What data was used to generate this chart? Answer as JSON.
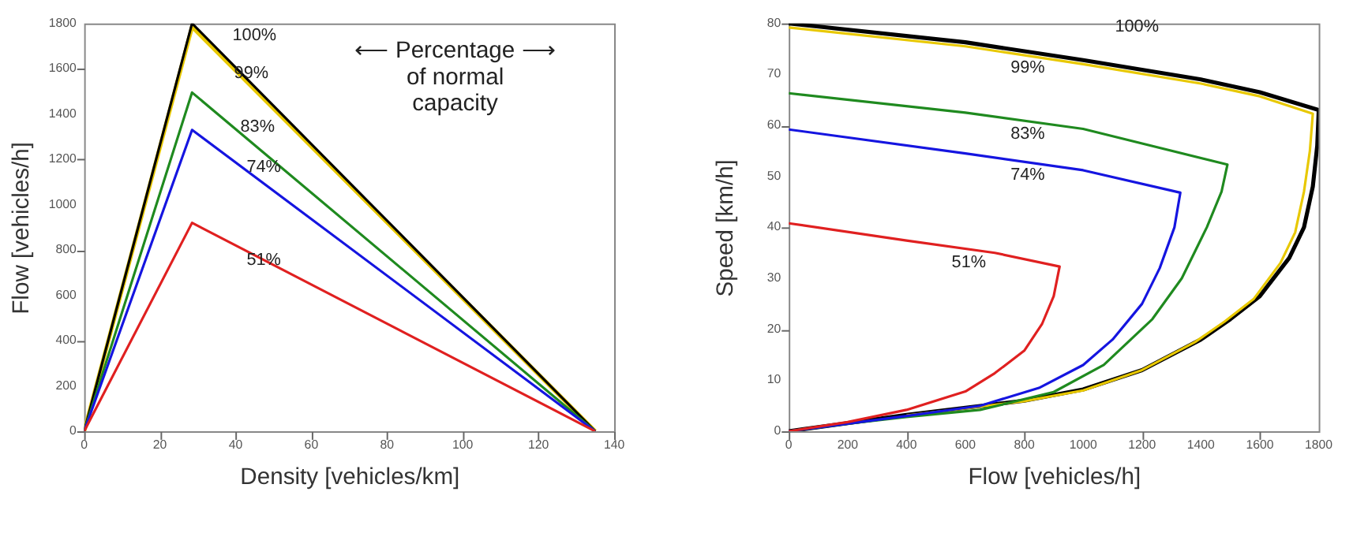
{
  "chart_data": [
    {
      "type": "line",
      "xlabel": "Density [vehicles/km]",
      "ylabel": "Flow [vehicles/h]",
      "xlim": [
        0,
        140
      ],
      "ylim": [
        0,
        1800
      ],
      "xticks": [
        0,
        20,
        40,
        60,
        80,
        100,
        120,
        140
      ],
      "yticks": [
        0,
        200,
        400,
        600,
        800,
        1000,
        1200,
        1400,
        1600,
        1800
      ],
      "grid": false,
      "series": [
        {
          "name": "99%",
          "color": "#e8c800",
          "x": [
            0,
            28.5,
            135
          ],
          "values": [
            0,
            1785,
            0
          ]
        },
        {
          "name": "100%",
          "color": "#000000",
          "x": [
            0,
            28.5,
            135
          ],
          "values": [
            0,
            1800,
            0
          ]
        },
        {
          "name": "83%",
          "color": "#1f8a1f",
          "x": [
            0,
            28.5,
            135
          ],
          "values": [
            0,
            1495,
            0
          ]
        },
        {
          "name": "74%",
          "color": "#1515e0",
          "x": [
            0,
            28.5,
            135
          ],
          "values": [
            0,
            1330,
            0
          ]
        },
        {
          "name": "51%",
          "color": "#e02020",
          "x": [
            0,
            28.5,
            135
          ],
          "values": [
            0,
            920,
            0
          ]
        }
      ],
      "annotations": [
        "⟵   Percentage   ⟶\nof normal\ncapacity"
      ]
    },
    {
      "type": "line",
      "xlabel": "Flow [vehicles/h]",
      "ylabel": "Speed [km/h]",
      "xlim": [
        0,
        1800
      ],
      "ylim": [
        0,
        80
      ],
      "xticks": [
        0,
        200,
        400,
        600,
        800,
        1000,
        1200,
        1400,
        1600,
        1800
      ],
      "yticks": [
        0,
        10,
        20,
        30,
        40,
        50,
        60,
        70,
        80
      ],
      "grid": false,
      "series": [
        {
          "name": "100%",
          "color": "#000000",
          "x": [
            0,
            600,
            1000,
            1400,
            1600,
            1800,
            1795,
            1780,
            1750,
            1700,
            1600,
            1500,
            1400,
            1200,
            1000,
            800,
            600,
            400,
            200,
            0
          ],
          "values": [
            80,
            76.3,
            72.8,
            69,
            66.5,
            63,
            56,
            48,
            40,
            34,
            26.5,
            22,
            18,
            12,
            8.2,
            6,
            4.6,
            3.2,
            1.6,
            0
          ]
        },
        {
          "name": "99%",
          "color": "#e8c800",
          "x": [
            0,
            600,
            1000,
            1400,
            1600,
            1780,
            1770,
            1750,
            1720,
            1670,
            1580,
            1480,
            1380,
            1200,
            1000,
            800,
            600,
            400
          ],
          "values": [
            79.2,
            75.5,
            72,
            68.2,
            65.7,
            62.3,
            55,
            47,
            39,
            33,
            26,
            21.5,
            17.5,
            12,
            8,
            5.9,
            4.5,
            3.1
          ]
        },
        {
          "name": "83%",
          "color": "#1f8a1f",
          "x": [
            0,
            600,
            1000,
            1490,
            1470,
            1420,
            1335,
            1235,
            1070,
            900,
            650,
            400,
            200,
            0
          ],
          "values": [
            66.3,
            62.5,
            59.3,
            52.3,
            47,
            40,
            30,
            22,
            13,
            7.7,
            4.2,
            2.8,
            1.5,
            0
          ]
        },
        {
          "name": "74%",
          "color": "#1515e0",
          "x": [
            0,
            600,
            1000,
            1330,
            1310,
            1260,
            1200,
            1100,
            1000,
            850,
            650,
            400,
            200,
            0
          ],
          "values": [
            59.2,
            54.5,
            51.2,
            46.8,
            40,
            32,
            25,
            18,
            13,
            8.5,
            5,
            3,
            1.5,
            0
          ]
        },
        {
          "name": "51%",
          "color": "#e02020",
          "x": [
            0,
            400,
            700,
            920,
            900,
            860,
            800,
            700,
            600,
            400,
            200,
            0
          ],
          "values": [
            40.8,
            37.4,
            35,
            32.3,
            26.5,
            21,
            15.8,
            11.4,
            7.8,
            4.2,
            1.8,
            0
          ]
        }
      ]
    }
  ]
}
